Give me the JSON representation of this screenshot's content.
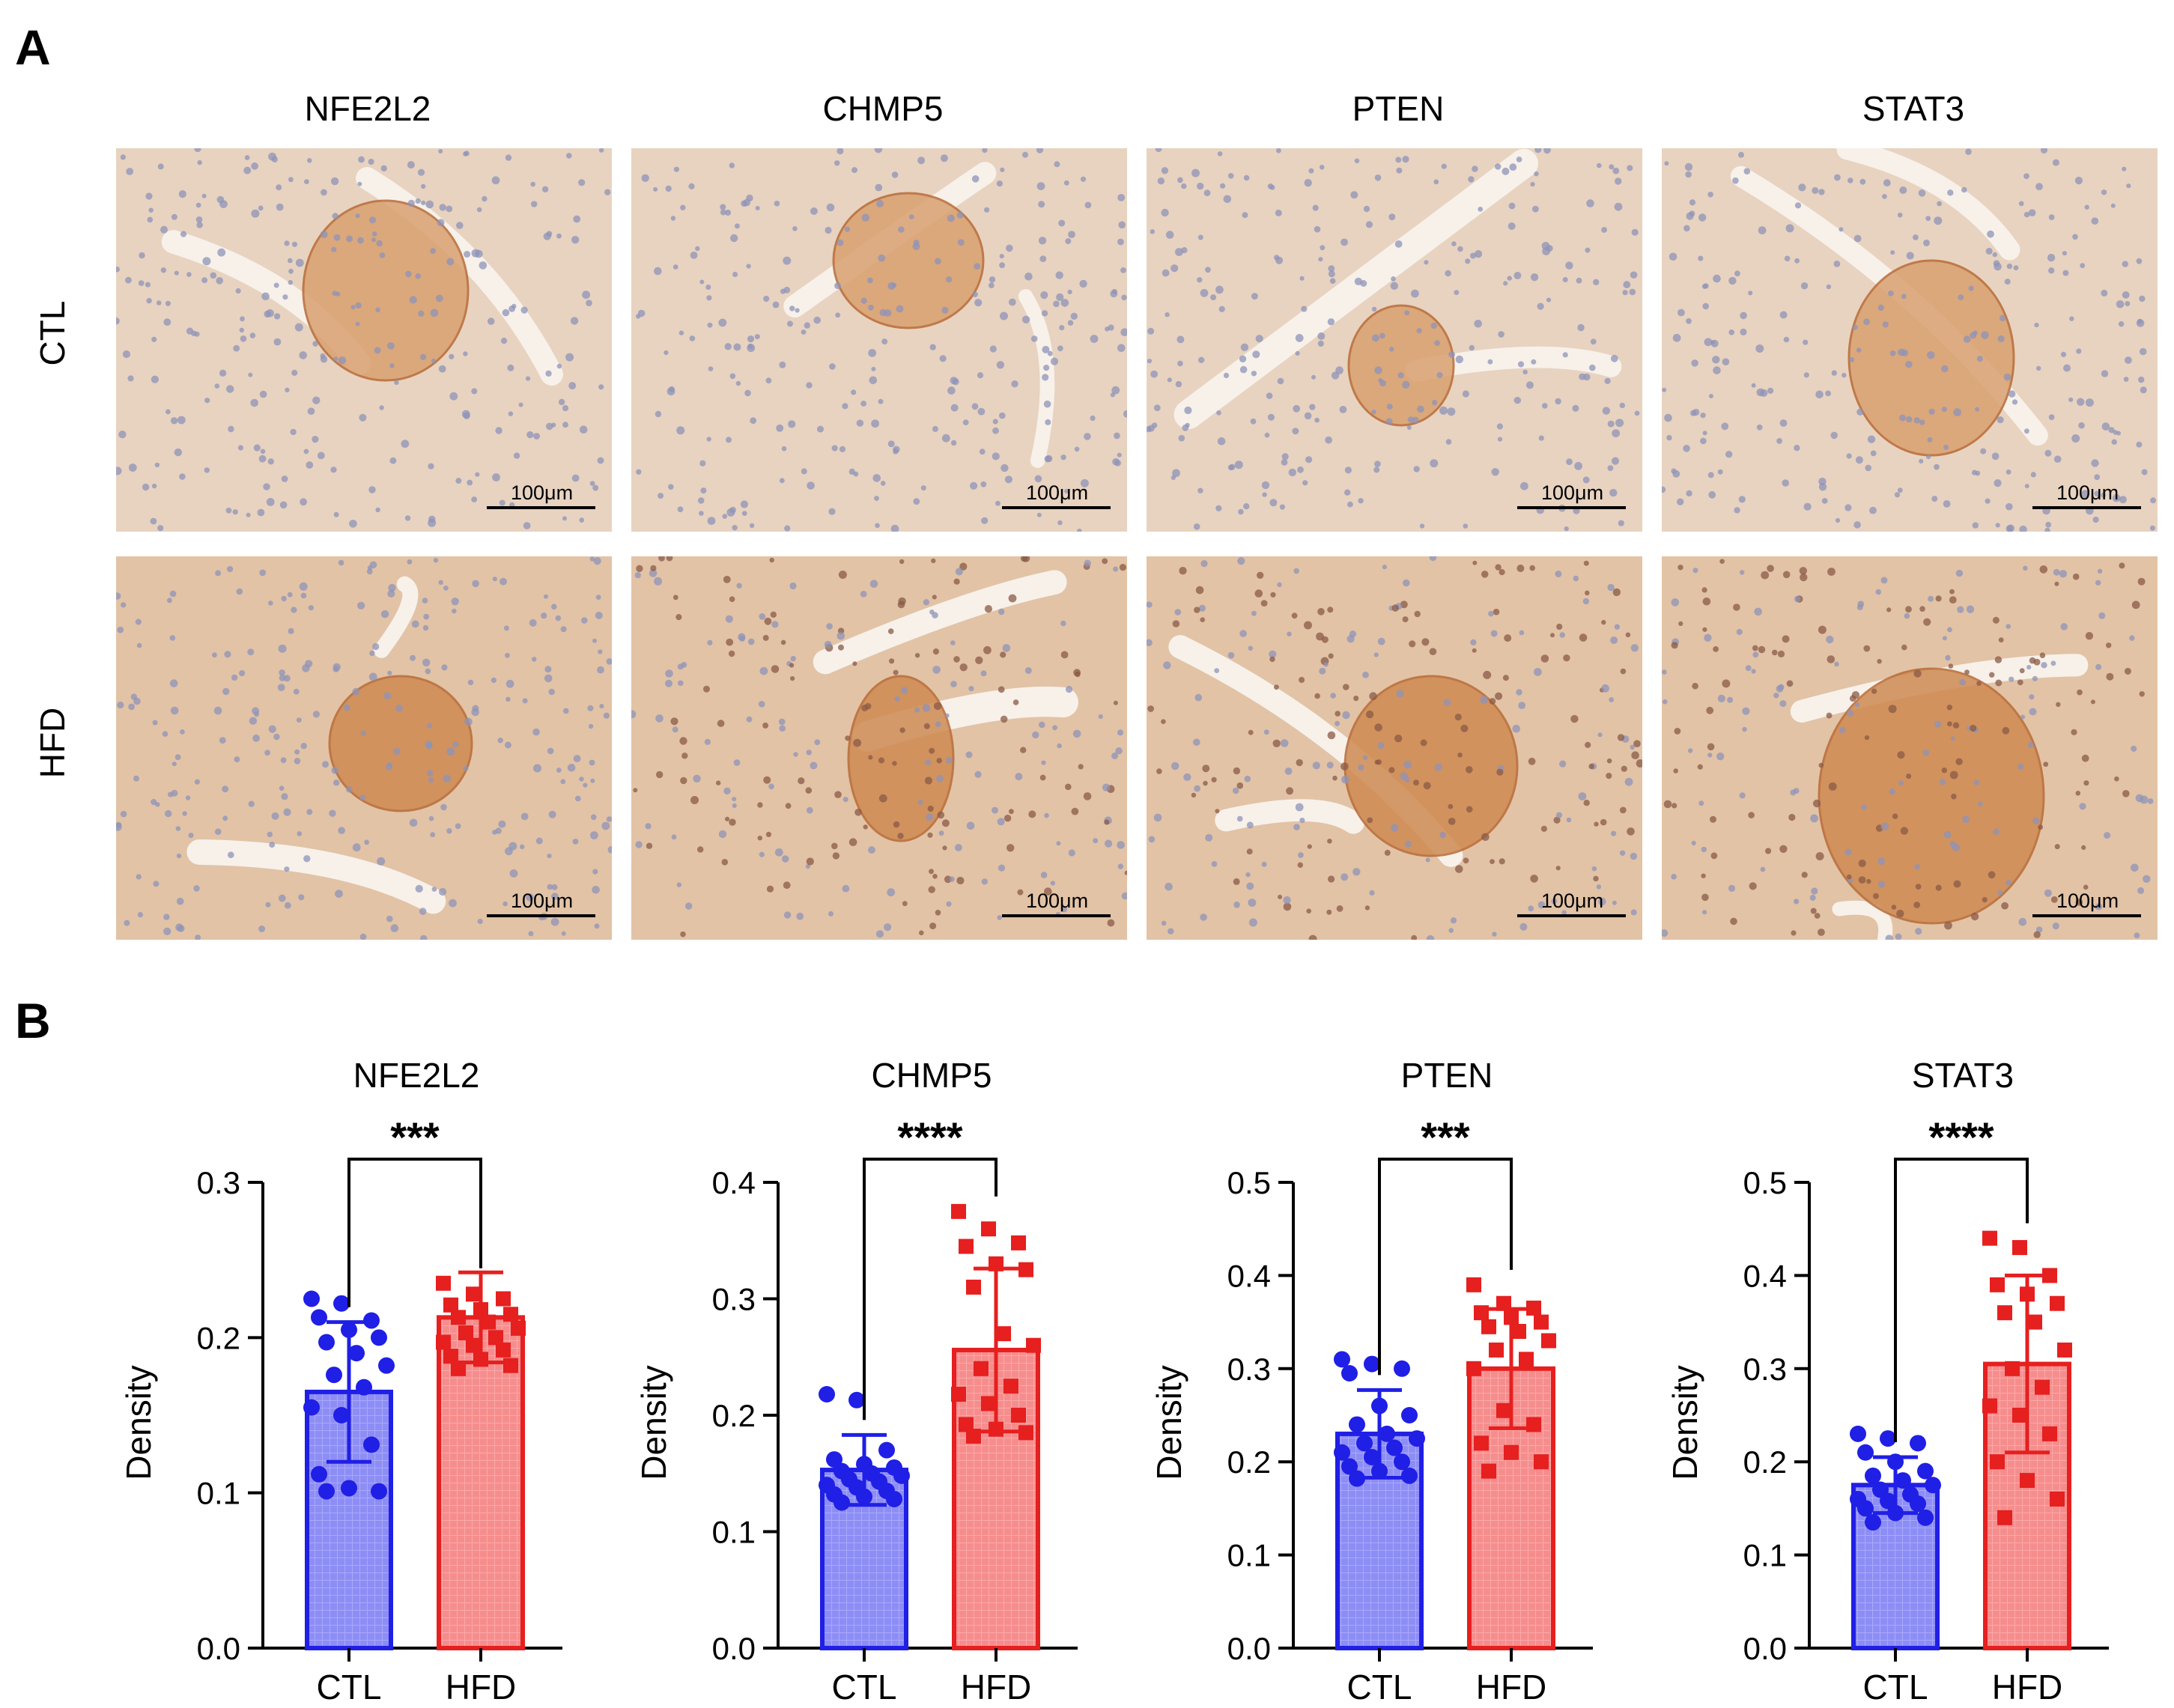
{
  "panel_a": {
    "label": "A",
    "columns": [
      "NFE2L2",
      "CHMP5",
      "PTEN",
      "STAT3"
    ],
    "rows": [
      "CTL",
      "HFD"
    ],
    "scale_bar": "100μm"
  },
  "panel_b": {
    "label": "B"
  },
  "chart_data": [
    {
      "type": "bar",
      "title": "NFE2L2",
      "xlabel": "",
      "ylabel": "Density",
      "ylim": [
        0,
        0.3
      ],
      "yticks": [
        "0.0",
        "0.1",
        "0.2",
        "0.3"
      ],
      "categories": [
        "CTL",
        "HFD"
      ],
      "values": [
        0.165,
        0.213
      ],
      "sd": [
        0.045,
        0.029
      ],
      "significance": "***",
      "colors": {
        "CTL": "#1f1fe6",
        "HFD": "#e61f1f"
      },
      "points": {
        "CTL": [
          0.225,
          0.222,
          0.211,
          0.213,
          0.205,
          0.2,
          0.197,
          0.19,
          0.182,
          0.176,
          0.168,
          0.155,
          0.15,
          0.131,
          0.112,
          0.103,
          0.101,
          0.101
        ],
        "HFD": [
          0.235,
          0.228,
          0.225,
          0.221,
          0.218,
          0.215,
          0.213,
          0.21,
          0.206,
          0.203,
          0.2,
          0.197,
          0.195,
          0.192,
          0.188,
          0.186,
          0.182,
          0.18
        ]
      }
    },
    {
      "type": "bar",
      "title": "CHMP5",
      "xlabel": "",
      "ylabel": "Density",
      "ylim": [
        0,
        0.4
      ],
      "yticks": [
        "0.0",
        "0.1",
        "0.2",
        "0.3",
        "0.4"
      ],
      "categories": [
        "CTL",
        "HFD"
      ],
      "values": [
        0.153,
        0.256
      ],
      "sd": [
        0.03,
        0.07
      ],
      "significance": "****",
      "colors": {
        "CTL": "#1f1fe6",
        "HFD": "#e61f1f"
      },
      "points": {
        "CTL": [
          0.218,
          0.213,
          0.17,
          0.162,
          0.158,
          0.155,
          0.152,
          0.15,
          0.148,
          0.145,
          0.143,
          0.14,
          0.138,
          0.135,
          0.132,
          0.13,
          0.128,
          0.125
        ],
        "HFD": [
          0.375,
          0.36,
          0.348,
          0.345,
          0.33,
          0.325,
          0.31,
          0.27,
          0.26,
          0.24,
          0.225,
          0.218,
          0.21,
          0.2,
          0.192,
          0.188,
          0.185,
          0.182
        ]
      }
    },
    {
      "type": "bar",
      "title": "PTEN",
      "xlabel": "",
      "ylabel": "Density",
      "ylim": [
        0,
        0.5
      ],
      "yticks": [
        "0.0",
        "0.1",
        "0.2",
        "0.3",
        "0.4",
        "0.5"
      ],
      "categories": [
        "CTL",
        "HFD"
      ],
      "values": [
        0.23,
        0.3
      ],
      "sd": [
        0.047,
        0.064
      ],
      "significance": "***",
      "colors": {
        "CTL": "#1f1fe6",
        "HFD": "#e61f1f"
      },
      "points": {
        "CTL": [
          0.31,
          0.305,
          0.3,
          0.295,
          0.26,
          0.25,
          0.24,
          0.23,
          0.225,
          0.22,
          0.215,
          0.21,
          0.205,
          0.2,
          0.195,
          0.19,
          0.185,
          0.182
        ],
        "HFD": [
          0.39,
          0.37,
          0.365,
          0.36,
          0.355,
          0.35,
          0.345,
          0.34,
          0.33,
          0.32,
          0.31,
          0.3,
          0.255,
          0.24,
          0.22,
          0.21,
          0.2,
          0.19
        ]
      }
    },
    {
      "type": "bar",
      "title": "STAT3",
      "xlabel": "",
      "ylabel": "Density",
      "ylim": [
        0,
        0.5
      ],
      "yticks": [
        "0.0",
        "0.1",
        "0.2",
        "0.3",
        "0.4",
        "0.5"
      ],
      "categories": [
        "CTL",
        "HFD"
      ],
      "values": [
        0.175,
        0.305
      ],
      "sd": [
        0.03,
        0.095
      ],
      "significance": "****",
      "colors": {
        "CTL": "#1f1fe6",
        "HFD": "#e61f1f"
      },
      "points": {
        "CTL": [
          0.23,
          0.225,
          0.22,
          0.21,
          0.2,
          0.19,
          0.185,
          0.18,
          0.175,
          0.17,
          0.165,
          0.16,
          0.158,
          0.155,
          0.15,
          0.145,
          0.14,
          0.135
        ],
        "HFD": [
          0.44,
          0.43,
          0.4,
          0.39,
          0.38,
          0.37,
          0.36,
          0.35,
          0.32,
          0.3,
          0.28,
          0.26,
          0.25,
          0.23,
          0.2,
          0.18,
          0.16,
          0.14
        ]
      }
    }
  ]
}
